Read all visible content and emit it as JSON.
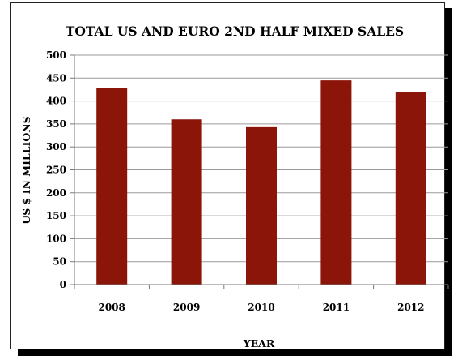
{
  "chart_data": {
    "type": "bar",
    "title": "TOTAL US AND EURO 2ND HALF MIXED SALES",
    "xlabel": "YEAR",
    "ylabel": "US $ IN MILLIONS",
    "categories": [
      "2008",
      "2009",
      "2010",
      "2011",
      "2012"
    ],
    "values": [
      428,
      360,
      343,
      445,
      420
    ],
    "ylim": [
      0,
      500
    ],
    "yticks": [
      0,
      50,
      100,
      150,
      200,
      250,
      300,
      350,
      400,
      450,
      500
    ],
    "grid": true,
    "legend": "none",
    "bar_color": "#8b1509"
  }
}
